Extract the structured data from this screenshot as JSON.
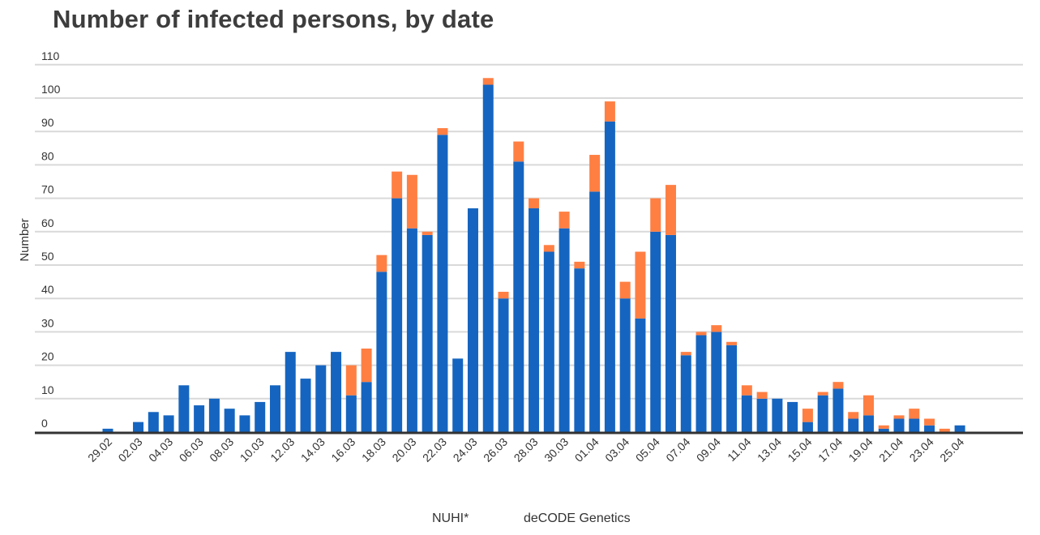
{
  "chart_data": {
    "type": "bar",
    "stacked": true,
    "title": "Number of infected persons, by date",
    "xlabel": "",
    "ylabel": "Number",
    "ylim": [
      0,
      110
    ],
    "yticks": [
      0,
      10,
      20,
      30,
      40,
      50,
      60,
      70,
      80,
      90,
      100,
      110
    ],
    "grid": true,
    "legend_position": "bottom",
    "categories": [
      "29.02",
      "01.03",
      "02.03",
      "03.03",
      "04.03",
      "05.03",
      "06.03",
      "07.03",
      "08.03",
      "09.03",
      "10.03",
      "11.03",
      "12.03",
      "13.03",
      "14.03",
      "15.03",
      "16.03",
      "17.03",
      "18.03",
      "19.03",
      "20.03",
      "21.03",
      "22.03",
      "23.03",
      "24.03",
      "25.03",
      "26.03",
      "27.03",
      "28.03",
      "29.03",
      "30.03",
      "31.03",
      "01.04",
      "02.04",
      "03.04",
      "04.04",
      "05.04",
      "06.04",
      "07.04",
      "08.04",
      "09.04",
      "10.04",
      "11.04",
      "12.04",
      "13.04",
      "14.04",
      "15.04",
      "16.04",
      "17.04",
      "18.04",
      "19.04",
      "20.04",
      "21.04",
      "22.04",
      "23.04",
      "24.04",
      "25.04"
    ],
    "tick_labels": [
      "29.02",
      "02.03",
      "04.03",
      "06.03",
      "08.03",
      "10.03",
      "12.03",
      "14.03",
      "16.03",
      "18.03",
      "20.03",
      "22.03",
      "24.03",
      "26.03",
      "28.03",
      "30.03",
      "01.04",
      "03.04",
      "05.04",
      "07.04",
      "09.04",
      "11.04",
      "13.04",
      "15.04",
      "17.04",
      "19.04",
      "21.04",
      "23.04",
      "25.04"
    ],
    "series": [
      {
        "name": "NUHI*",
        "color": "#1565c0",
        "values": [
          1,
          0,
          3,
          6,
          5,
          14,
          8,
          10,
          7,
          5,
          9,
          14,
          24,
          16,
          20,
          24,
          11,
          15,
          48,
          70,
          61,
          59,
          89,
          22,
          67,
          104,
          40,
          81,
          67,
          54,
          61,
          49,
          72,
          93,
          40,
          34,
          60,
          59,
          23,
          29,
          30,
          26,
          11,
          10,
          10,
          9,
          3,
          11,
          13,
          4,
          5,
          1,
          4,
          4,
          2,
          0,
          2
        ]
      },
      {
        "name": "deCODE Genetics",
        "color": "#ff7f43",
        "values": [
          0,
          0,
          0,
          0,
          0,
          0,
          0,
          0,
          0,
          0,
          0,
          0,
          0,
          0,
          0,
          0,
          9,
          10,
          5,
          8,
          16,
          1,
          2,
          0,
          0,
          2,
          2,
          6,
          3,
          2,
          5,
          2,
          11,
          6,
          5,
          20,
          10,
          15,
          1,
          1,
          2,
          1,
          3,
          2,
          0,
          0,
          4,
          1,
          2,
          2,
          6,
          1,
          1,
          3,
          2,
          1,
          0
        ]
      }
    ]
  }
}
